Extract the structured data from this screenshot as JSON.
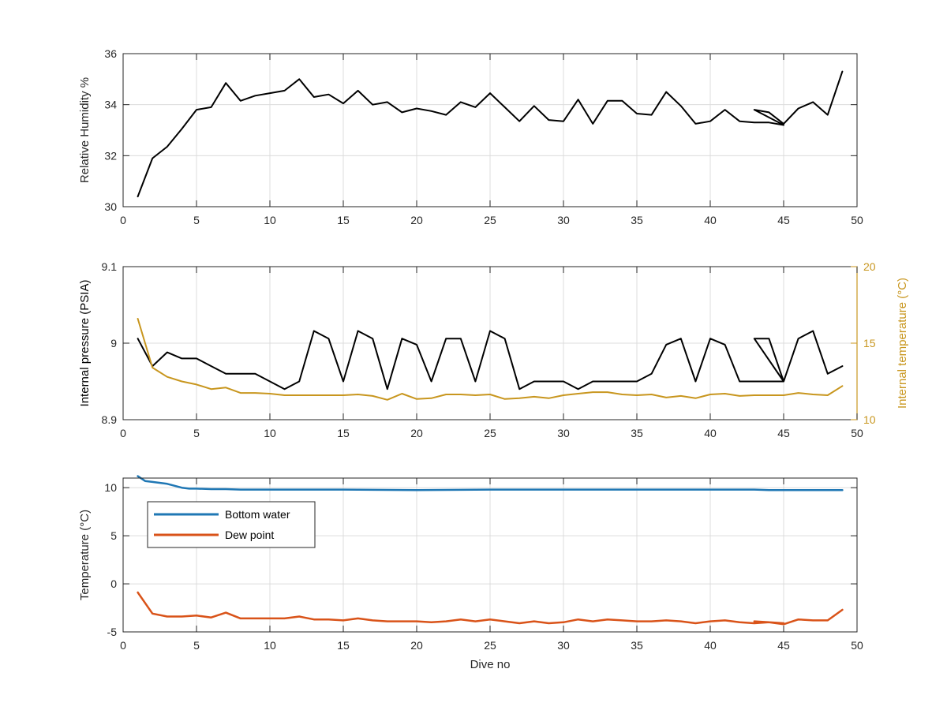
{
  "chart_data": [
    {
      "type": "line",
      "xlabel": "",
      "ylabel": "Relative Humidity %",
      "xlim": [
        0,
        50
      ],
      "ylim": [
        30,
        36
      ],
      "xticks": [
        0,
        5,
        10,
        15,
        20,
        25,
        30,
        35,
        40,
        45,
        50
      ],
      "yticks": [
        30,
        32,
        34,
        36
      ],
      "grid": true,
      "colors": {
        "axis": "#262626",
        "grid": "#dcdcdc"
      },
      "series": [
        {
          "name": "",
          "color": "#000000",
          "x": [
            1,
            2,
            3,
            4,
            5,
            6,
            7,
            8,
            9,
            10,
            11,
            12,
            13,
            14,
            15,
            16,
            17,
            18,
            19,
            20,
            21,
            22,
            23,
            24,
            25,
            26,
            27,
            28,
            29,
            30,
            31,
            32,
            33,
            34,
            35,
            36,
            37,
            38,
            39,
            40,
            41,
            42,
            43,
            44,
            45,
            43,
            44,
            45,
            46,
            47,
            48,
            49
          ],
          "y": [
            30.4,
            31.9,
            32.35,
            33.05,
            33.8,
            33.9,
            34.85,
            34.15,
            34.35,
            34.45,
            34.55,
            35.0,
            34.3,
            34.4,
            34.05,
            34.55,
            34.0,
            34.1,
            33.7,
            33.85,
            33.75,
            33.6,
            34.1,
            33.9,
            34.45,
            33.9,
            33.35,
            33.95,
            33.4,
            33.35,
            34.2,
            33.25,
            34.15,
            34.15,
            33.65,
            33.6,
            34.5,
            33.95,
            33.25,
            33.35,
            33.8,
            33.35,
            33.3,
            33.3,
            33.2,
            33.8,
            33.7,
            33.25,
            33.85,
            34.1,
            33.6,
            35.3
          ]
        }
      ]
    },
    {
      "type": "line",
      "xlabel": "",
      "ylabel": "Internal pressure (PSIA)",
      "ylabel_right": "Internal temperature (°C)",
      "xlim": [
        0,
        50
      ],
      "ylim": [
        8.9,
        9.1
      ],
      "ylim_right": [
        10,
        20
      ],
      "xticks": [
        0,
        5,
        10,
        15,
        20,
        25,
        30,
        35,
        40,
        45,
        50
      ],
      "yticks": [
        8.9,
        9,
        9.1
      ],
      "yticks_labels": [
        "8.9",
        "9",
        "9.1"
      ],
      "yticks_right": [
        10,
        15,
        20
      ],
      "grid": true,
      "colors": {
        "axis": "#262626",
        "grid": "#dcdcdc",
        "right_axis": "#c8961e"
      },
      "series": [
        {
          "name": "",
          "axis": "left",
          "color": "#000000",
          "x": [
            1,
            2,
            3,
            4,
            5,
            6,
            7,
            8,
            9,
            10,
            11,
            12,
            13,
            14,
            15,
            16,
            17,
            18,
            19,
            20,
            21,
            22,
            23,
            24,
            25,
            26,
            27,
            28,
            29,
            30,
            31,
            32,
            33,
            34,
            35,
            36,
            37,
            38,
            39,
            40,
            41,
            42,
            43,
            44,
            45,
            43,
            44,
            45,
            46,
            47,
            48,
            49
          ],
          "y": [
            9.006,
            8.97,
            8.988,
            8.98,
            8.98,
            8.97,
            8.96,
            8.96,
            8.96,
            8.95,
            8.94,
            8.95,
            9.016,
            9.006,
            8.95,
            9.016,
            9.006,
            8.94,
            9.006,
            8.998,
            8.95,
            9.006,
            9.006,
            8.95,
            9.016,
            9.006,
            8.94,
            8.95,
            8.95,
            8.95,
            8.94,
            8.95,
            8.95,
            8.95,
            8.95,
            8.96,
            8.998,
            9.006,
            8.95,
            9.006,
            8.998,
            8.95,
            8.95,
            8.95,
            8.95,
            9.006,
            9.006,
            8.95,
            9.006,
            9.016,
            8.96,
            8.97
          ]
        },
        {
          "name": "",
          "axis": "right",
          "color": "#c8961e",
          "x": [
            1,
            2,
            3,
            4,
            5,
            6,
            7,
            8,
            9,
            10,
            11,
            12,
            13,
            14,
            15,
            16,
            17,
            18,
            19,
            20,
            21,
            22,
            23,
            24,
            25,
            26,
            27,
            28,
            29,
            30,
            31,
            32,
            33,
            34,
            35,
            36,
            37,
            38,
            39,
            40,
            41,
            42,
            43,
            44,
            45,
            46,
            47,
            48,
            49
          ],
          "y": [
            16.6,
            13.4,
            12.8,
            12.5,
            12.3,
            12.0,
            12.1,
            11.75,
            11.75,
            11.7,
            11.6,
            11.6,
            11.6,
            11.6,
            11.6,
            11.65,
            11.55,
            11.3,
            11.7,
            11.35,
            11.4,
            11.65,
            11.65,
            11.6,
            11.65,
            11.35,
            11.4,
            11.5,
            11.4,
            11.6,
            11.7,
            11.8,
            11.8,
            11.65,
            11.6,
            11.65,
            11.45,
            11.55,
            11.4,
            11.65,
            11.7,
            11.55,
            11.6,
            11.6,
            11.6,
            11.75,
            11.65,
            11.6,
            12.2
          ]
        }
      ]
    },
    {
      "type": "line",
      "xlabel": "Dive no",
      "ylabel": "Temperature (°C)",
      "xlim": [
        0,
        50
      ],
      "ylim": [
        -5,
        11
      ],
      "xticks": [
        0,
        5,
        10,
        15,
        20,
        25,
        30,
        35,
        40,
        45,
        50
      ],
      "yticks": [
        -5,
        0,
        5,
        10
      ],
      "grid": true,
      "legend": "top-left",
      "colors": {
        "axis": "#262626",
        "grid": "#dcdcdc"
      },
      "series": [
        {
          "name": "Bottom water",
          "color": "#1f77b4",
          "x": [
            1,
            1.5,
            2,
            3,
            4,
            4.5,
            5,
            6,
            7,
            8,
            10,
            15,
            20,
            25,
            30,
            35,
            40,
            43,
            44,
            45,
            49
          ],
          "y": [
            11.2,
            10.7,
            10.6,
            10.4,
            10.0,
            9.9,
            9.9,
            9.85,
            9.85,
            9.8,
            9.8,
            9.8,
            9.75,
            9.8,
            9.8,
            9.8,
            9.8,
            9.8,
            9.75,
            9.75,
            9.75
          ]
        },
        {
          "name": "Dew point",
          "color": "#d95319",
          "x": [
            1,
            2,
            3,
            4,
            5,
            6,
            7,
            8,
            9,
            10,
            11,
            12,
            13,
            14,
            15,
            16,
            17,
            18,
            19,
            20,
            21,
            22,
            23,
            24,
            25,
            26,
            27,
            28,
            29,
            30,
            31,
            32,
            33,
            34,
            35,
            36,
            37,
            38,
            39,
            40,
            41,
            42,
            43,
            44,
            45,
            43,
            44,
            45,
            46,
            47,
            48,
            49
          ],
          "y": [
            -0.9,
            -3.1,
            -3.4,
            -3.4,
            -3.3,
            -3.5,
            -3.0,
            -3.6,
            -3.6,
            -3.6,
            -3.6,
            -3.4,
            -3.7,
            -3.7,
            -3.8,
            -3.6,
            -3.8,
            -3.9,
            -3.9,
            -3.9,
            -4.0,
            -3.9,
            -3.7,
            -3.9,
            -3.7,
            -3.9,
            -4.1,
            -3.9,
            -4.1,
            -4.0,
            -3.7,
            -3.9,
            -3.7,
            -3.8,
            -3.9,
            -3.9,
            -3.8,
            -3.9,
            -4.1,
            -3.9,
            -3.8,
            -4.0,
            -4.1,
            -4.0,
            -4.1,
            -3.9,
            -4.0,
            -4.2,
            -3.7,
            -3.8,
            -3.8,
            -2.7
          ]
        }
      ]
    }
  ]
}
